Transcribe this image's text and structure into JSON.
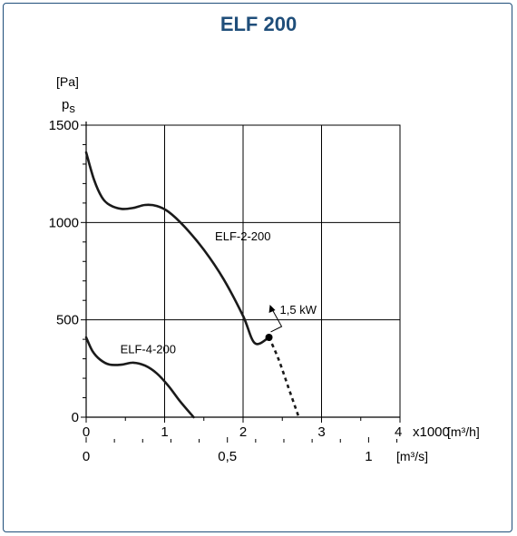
{
  "chart_data": {
    "type": "line",
    "title": "ELF 200",
    "title_color": "#1f4e7a",
    "ylabel_unit": "[Pa]",
    "ylabel_symbol": "p",
    "ylabel_subscript": "s",
    "x_unit_primary": "[m³/h]",
    "x_multiplier": "x1000",
    "x_unit_secondary": "[m³/s]",
    "xlim": [
      0,
      4000
    ],
    "ylim": [
      0,
      1500
    ],
    "grid": true,
    "x_ticks": [
      0,
      1000,
      2000,
      3000,
      4000
    ],
    "x_tick_labels": [
      "0",
      "1",
      "2",
      "3",
      "4"
    ],
    "x2_ticks": [
      0,
      1800,
      3600
    ],
    "x2_tick_labels": [
      "0",
      "0,5",
      "1"
    ],
    "y_ticks": [
      0,
      500,
      1000,
      1500
    ],
    "y_tick_labels": [
      "0",
      "500",
      "1000",
      "1500"
    ],
    "series": [
      {
        "name": "ELF-2-200",
        "style": "solid",
        "x": [
          0,
          100,
          200,
          300,
          450,
          600,
          750,
          900,
          1050,
          1250,
          1500,
          1750,
          2000,
          2150,
          2330
        ],
        "y": [
          1360,
          1220,
          1130,
          1090,
          1070,
          1075,
          1090,
          1085,
          1055,
          980,
          860,
          710,
          520,
          380,
          410
        ]
      },
      {
        "name": "ELF-2-200 (dashed)",
        "style": "dashed",
        "x": [
          2330,
          2450,
          2580,
          2710
        ],
        "y": [
          410,
          300,
          150,
          0
        ]
      },
      {
        "name": "ELF-4-200",
        "style": "solid",
        "x": [
          0,
          80,
          180,
          300,
          450,
          600,
          750,
          900,
          1050,
          1200,
          1370
        ],
        "y": [
          410,
          340,
          295,
          270,
          270,
          280,
          265,
          225,
          160,
          80,
          0
        ]
      }
    ],
    "annotations": [
      {
        "text": "ELF-2-200",
        "x": 1700,
        "y": 900
      },
      {
        "text": "ELF-4-200",
        "x": 550,
        "y": 320
      },
      {
        "text": "1,5 kW",
        "color": "#cc0000",
        "x": 2330,
        "y": 410
      }
    ],
    "marker_color": "#000000",
    "curve_color": "#1a1a1a"
  }
}
